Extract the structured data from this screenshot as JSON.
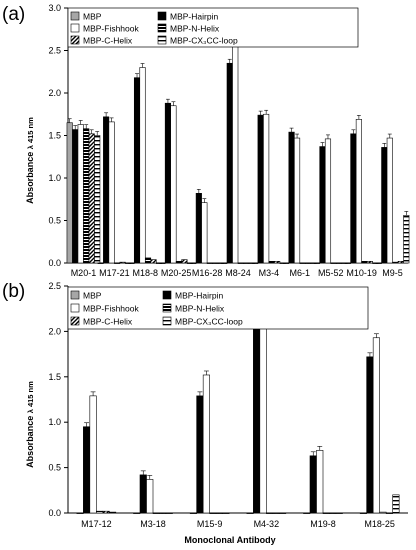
{
  "chart_data": [
    {
      "type": "bar",
      "panel": "(a)",
      "xlabel": "Monoclonal Antibody",
      "ylabel_main": "Absorbance",
      "ylabel_sub": "λ 415 nm",
      "ylim": [
        0,
        3.0
      ],
      "yticks": [
        "0.0",
        "0.5",
        "1.0",
        "1.5",
        "2.0",
        "2.5",
        "3.0"
      ],
      "categories": [
        "M20-1",
        "M17-21",
        "M18-8",
        "M20-25",
        "M16-28",
        "M8-24",
        "M3-4",
        "M6-1",
        "M5-52",
        "M10-19",
        "M9-5"
      ],
      "series": [
        {
          "name": "MBP",
          "values": [
            1.65,
            0,
            0,
            0,
            0,
            0,
            0,
            0,
            0,
            0,
            0
          ]
        },
        {
          "name": "MBP-Hairpin",
          "values": [
            1.57,
            1.72,
            2.18,
            1.88,
            0.82,
            2.35,
            1.74,
            1.54,
            1.37,
            1.52,
            1.36
          ]
        },
        {
          "name": "MBP-Fishhook",
          "values": [
            1.63,
            1.66,
            2.3,
            1.85,
            0.71,
            2.55,
            1.75,
            1.47,
            1.46,
            1.69,
            1.47
          ]
        },
        {
          "name": "MBP-N-Helix",
          "values": [
            1.58,
            0,
            0.06,
            0.02,
            0,
            0,
            0.02,
            0,
            0,
            0.02,
            0.01
          ]
        },
        {
          "name": "MBP-C-Helix",
          "values": [
            1.52,
            0.01,
            0.04,
            0.04,
            0,
            0,
            0.02,
            0,
            0,
            0.02,
            0.02
          ]
        },
        {
          "name": "MBP-CX₃CC-loop",
          "values": [
            1.5,
            0,
            0,
            0,
            0,
            0,
            0,
            0,
            0,
            0,
            0.56
          ]
        }
      ],
      "legend": [
        "MBP",
        "MBP-Hairpin",
        "MBP-Fishhook",
        "MBP-N-Helix",
        "MBP-C-Helix",
        "MBP-CX₃CC-loop"
      ]
    },
    {
      "type": "bar",
      "panel": "(b)",
      "xlabel": "Monoclonal Antibody",
      "ylabel_main": "Absorbance",
      "ylabel_sub": "λ 415 nm",
      "ylim": [
        0,
        2.5
      ],
      "yticks": [
        "0.0",
        "0.5",
        "1.0",
        "1.5",
        "2.0",
        "2.5"
      ],
      "categories": [
        "M17-12",
        "M3-18",
        "M15-9",
        "M4-32",
        "M19-8",
        "M18-25"
      ],
      "series": [
        {
          "name": "MBP",
          "values": [
            0,
            0,
            0,
            0,
            0,
            0
          ]
        },
        {
          "name": "MBP-Hairpin",
          "values": [
            0.95,
            0.42,
            1.29,
            2.07,
            0.63,
            1.72
          ]
        },
        {
          "name": "MBP-Fishhook",
          "values": [
            1.29,
            0.37,
            1.52,
            2.09,
            0.69,
            1.93
          ]
        },
        {
          "name": "MBP-N-Helix",
          "values": [
            0.02,
            0,
            0,
            0,
            0,
            0.01
          ]
        },
        {
          "name": "MBP-C-Helix",
          "values": [
            0.02,
            0,
            0,
            0,
            0,
            0
          ]
        },
        {
          "name": "MBP-CX₃CC-loop",
          "values": [
            0.01,
            0,
            0,
            0,
            0,
            0.2
          ]
        }
      ],
      "legend": [
        "MBP",
        "MBP-Hairpin",
        "MBP-Fishhook",
        "MBP-N-Helix",
        "MBP-C-Helix",
        "MBP-CX₃CC-loop"
      ]
    }
  ],
  "styles": {
    "MBP": {
      "fill": "#a6a6a6",
      "pattern": "none"
    },
    "MBP-Hairpin": {
      "fill": "#000000",
      "pattern": "none"
    },
    "MBP-Fishhook": {
      "fill": "#ffffff",
      "pattern": "none"
    },
    "MBP-N-Helix": {
      "fill": "#000000",
      "pattern": "hstripe"
    },
    "MBP-C-Helix": {
      "fill": "#ffffff",
      "pattern": "diag"
    },
    "MBP-CX₃CC-loop": {
      "fill": "#ffffff",
      "pattern": "hstripe-light"
    }
  }
}
